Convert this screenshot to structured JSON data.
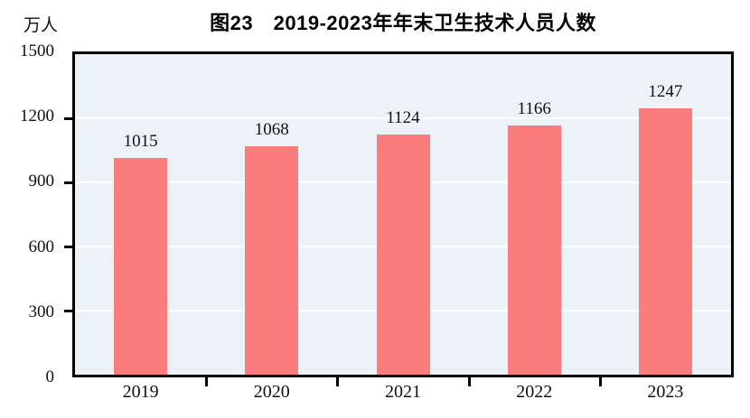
{
  "chart_data": {
    "type": "bar",
    "title": "图23　2019-2023年年末卫生技术人员人数",
    "unit_label": "万人",
    "categories": [
      "2019",
      "2020",
      "2021",
      "2022",
      "2023"
    ],
    "values": [
      1015,
      1068,
      1124,
      1166,
      1247
    ],
    "ylim": [
      0,
      1500
    ],
    "yticks": [
      0,
      300,
      600,
      900,
      1200,
      1500
    ],
    "grid": true,
    "legend": "none",
    "colors": {
      "bar_fill": "#fa7c7c",
      "plot_background": "#ecf3f8",
      "gridline": "#ffffff",
      "axis_frame": "#000000",
      "text": "#111111",
      "title_text": "#000000",
      "page_background": "#ffffff"
    }
  }
}
